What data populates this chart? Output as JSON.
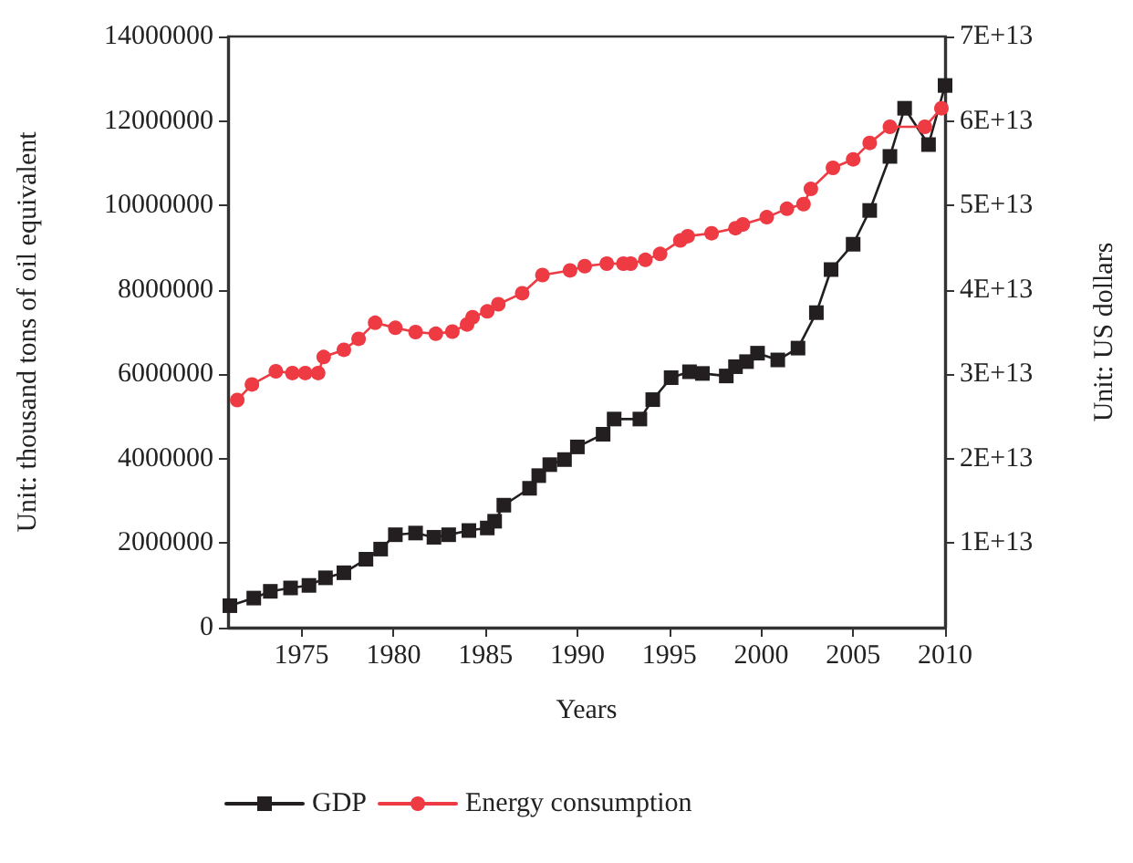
{
  "chart_data": {
    "type": "line",
    "xlabel": "Years",
    "ylabel": "Unit: thousand tons of oil equivalent",
    "y2label": "Unit: US dollars",
    "xlim": [
      1971,
      2010
    ],
    "xticks": [
      1975,
      1980,
      1985,
      1990,
      1995,
      2000,
      2005,
      2010
    ],
    "ylim": [
      0,
      14000000
    ],
    "yticks": [
      0,
      2000000,
      4000000,
      6000000,
      8000000,
      10000000,
      12000000,
      14000000
    ],
    "y2lim": [
      0,
      70000000000000.0
    ],
    "y2ticks": [
      {
        "value": 10000000000000.0,
        "label": "1E+13"
      },
      {
        "value": 20000000000000.0,
        "label": "2E+13"
      },
      {
        "value": 30000000000000.0,
        "label": "3E+13"
      },
      {
        "value": 40000000000000.0,
        "label": "4E+13"
      },
      {
        "value": 50000000000000.0,
        "label": "5E+13"
      },
      {
        "value": 60000000000000.0,
        "label": "6E+13"
      },
      {
        "value": 70000000000000.0,
        "label": "7E+13"
      }
    ],
    "grid": false,
    "legend": "bottom left",
    "line_style": "solid",
    "series": [
      {
        "name": "GDP",
        "color": "#231f20",
        "marker": "square",
        "axis": "y2",
        "x": [
          1971.1,
          1972.4,
          1973.3,
          1974.4,
          1975.4,
          1976.3,
          1977.3,
          1978.5,
          1979.3,
          1980.1,
          1981.2,
          1982.2,
          1983.0,
          1984.1,
          1985.1,
          1985.5,
          1986.0,
          1987.4,
          1987.9,
          1988.5,
          1989.3,
          1990.0,
          1991.4,
          1992.0,
          1993.4,
          1994.1,
          1995.1,
          1996.1,
          1996.8,
          1998.1,
          1998.6,
          1999.2,
          1999.8,
          2000.9,
          2002.0,
          2003.0,
          2003.8,
          2005.0,
          2005.9,
          2007.0,
          2007.8,
          2009.1,
          2010.0
        ],
        "values": [
          2600000000000.0,
          3500000000000.0,
          4300000000000.0,
          4700000000000.0,
          5000000000000.0,
          5900000000000.0,
          6500000000000.0,
          8100000000000.0,
          9300000000000.0,
          11000000000000.0,
          11200000000000.0,
          10700000000000.0,
          11000000000000.0,
          11500000000000.0,
          11800000000000.0,
          12600000000000.0,
          14500000000000.0,
          16500000000000.0,
          18000000000000.0,
          19300000000000.0,
          19900000000000.0,
          21400000000000.0,
          22900000000000.0,
          24700000000000.0,
          24700000000000.0,
          27000000000000.0,
          29600000000000.0,
          30300000000000.0,
          30100000000000.0,
          29800000000000.0,
          30900000000000.0,
          31500000000000.0,
          32500000000000.0,
          31700000000000.0,
          33100000000000.0,
          37300000000000.0,
          42400000000000.0,
          45400000000000.0,
          49400000000000.0,
          55800000000000.0,
          61500000000000.0,
          57200000000000.0,
          64200000000000.0
        ]
      },
      {
        "name": "Energy consumption",
        "color": "#ee3a43",
        "marker": "circle",
        "x": [
          1971.5,
          1972.3,
          1973.6,
          1974.5,
          1975.2,
          1975.9,
          1976.2,
          1977.3,
          1978.1,
          1979.0,
          1980.1,
          1981.2,
          1982.3,
          1983.2,
          1984.0,
          1984.3,
          1985.1,
          1985.7,
          1987.0,
          1988.1,
          1989.6,
          1990.4,
          1991.6,
          1992.5,
          1992.9,
          1993.7,
          1994.5,
          1995.6,
          1996.0,
          1997.3,
          1998.6,
          1999.0,
          2000.3,
          2001.4,
          2002.3,
          2002.7,
          2003.9,
          2005.0,
          2005.9,
          2007.0,
          2008.9,
          2009.8
        ],
        "values": [
          5390000,
          5760000,
          6070000,
          6030000,
          6030000,
          6030000,
          6410000,
          6580000,
          6840000,
          7220000,
          7100000,
          7000000,
          6960000,
          7010000,
          7180000,
          7350000,
          7490000,
          7660000,
          7920000,
          8350000,
          8460000,
          8560000,
          8620000,
          8620000,
          8620000,
          8710000,
          8850000,
          9170000,
          9270000,
          9340000,
          9460000,
          9550000,
          9720000,
          9920000,
          10030000,
          10390000,
          10890000,
          11090000,
          11480000,
          11860000,
          11860000,
          12300000
        ]
      }
    ]
  }
}
